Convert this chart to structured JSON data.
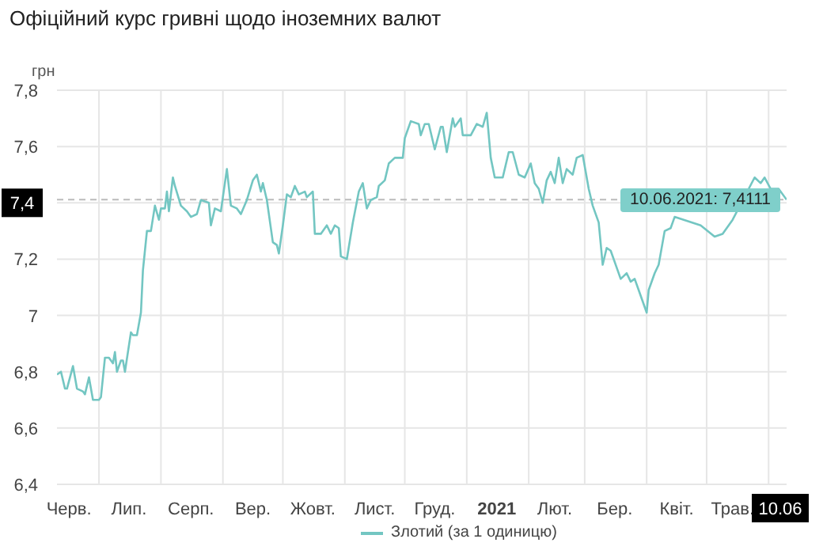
{
  "chart_data": {
    "type": "line",
    "title": "Офіційний курс гривні щодо іноземних валют",
    "ylabel": "грн",
    "x": [
      "2020-06-10",
      "2020-06-12",
      "2020-06-13",
      "2020-06-14",
      "2020-06-15",
      "2020-06-18",
      "2020-06-20",
      "2020-06-23",
      "2020-06-24",
      "2020-06-26",
      "2020-06-28",
      "2020-07-01",
      "2020-07-02",
      "2020-07-04",
      "2020-07-06",
      "2020-07-08",
      "2020-07-09",
      "2020-07-10",
      "2020-07-12",
      "2020-07-13",
      "2020-07-14",
      "2020-07-17",
      "2020-07-18",
      "2020-07-20",
      "2020-07-22",
      "2020-07-23",
      "2020-07-25",
      "2020-07-27",
      "2020-07-29",
      "2020-07-31",
      "2020-08-01",
      "2020-08-03",
      "2020-08-04",
      "2020-08-05",
      "2020-08-07",
      "2020-08-08",
      "2020-08-11",
      "2020-08-14",
      "2020-08-16",
      "2020-08-19",
      "2020-08-21",
      "2020-08-25",
      "2020-08-26",
      "2020-08-28",
      "2020-08-31",
      "2020-09-01",
      "2020-09-03",
      "2020-09-05",
      "2020-09-08",
      "2020-09-10",
      "2020-09-13",
      "2020-09-16",
      "2020-09-18",
      "2020-09-20",
      "2020-09-21",
      "2020-09-23",
      "2020-09-26",
      "2020-09-28",
      "2020-09-29",
      "2020-10-01",
      "2020-10-03",
      "2020-10-05",
      "2020-10-07",
      "2020-10-09",
      "2020-10-12",
      "2020-10-13",
      "2020-10-16",
      "2020-10-17",
      "2020-10-20",
      "2020-10-23",
      "2020-10-25",
      "2020-10-27",
      "2020-10-29",
      "2020-10-30",
      "2020-11-02",
      "2020-11-05",
      "2020-11-08",
      "2020-11-10",
      "2020-11-12",
      "2020-11-14",
      "2020-11-17",
      "2020-11-18",
      "2020-11-21",
      "2020-11-23",
      "2020-11-26",
      "2020-11-30",
      "2020-12-01",
      "2020-12-04",
      "2020-12-08",
      "2020-12-09",
      "2020-12-11",
      "2020-12-13",
      "2020-12-16",
      "2020-12-19",
      "2020-12-20",
      "2020-12-22",
      "2020-12-25",
      "2020-12-26",
      "2020-12-29",
      "2020-12-30",
      "2021-01-03",
      "2021-01-06",
      "2021-01-09",
      "2021-01-11",
      "2021-01-13",
      "2021-01-15",
      "2021-01-19",
      "2021-01-22",
      "2021-01-24",
      "2021-01-27",
      "2021-01-30",
      "2021-02-02",
      "2021-02-04",
      "2021-02-06",
      "2021-02-08",
      "2021-02-10",
      "2021-02-12",
      "2021-02-14",
      "2021-02-16",
      "2021-02-18",
      "2021-02-20",
      "2021-02-23",
      "2021-02-25",
      "2021-02-28",
      "2021-03-03",
      "2021-03-05",
      "2021-03-08",
      "2021-03-10",
      "2021-03-12",
      "2021-03-14",
      "2021-03-17",
      "2021-03-19",
      "2021-03-22",
      "2021-03-24",
      "2021-03-26",
      "2021-03-28",
      "2021-04-01",
      "2021-04-02",
      "2021-04-05",
      "2021-04-07",
      "2021-04-10",
      "2021-04-13",
      "2021-04-15",
      "2021-04-19",
      "2021-04-28",
      "2021-05-05",
      "2021-05-09",
      "2021-05-14",
      "2021-05-25",
      "2021-05-28",
      "2021-05-30",
      "2021-06-02",
      "2021-06-06",
      "2021-06-10"
    ],
    "series": [
      {
        "name": "Злотий (за 1 одиницю)",
        "color": "#73c6c2",
        "values": [
          6.79,
          6.8,
          6.77,
          6.74,
          6.74,
          6.82,
          6.74,
          6.73,
          6.72,
          6.78,
          6.7,
          6.7,
          6.71,
          6.85,
          6.85,
          6.83,
          6.87,
          6.8,
          6.84,
          6.84,
          6.8,
          6.94,
          6.93,
          6.93,
          7.01,
          7.16,
          7.3,
          7.3,
          7.39,
          7.34,
          7.38,
          7.38,
          7.44,
          7.37,
          7.49,
          7.46,
          7.39,
          7.37,
          7.35,
          7.36,
          7.41,
          7.4,
          7.32,
          7.38,
          7.37,
          7.42,
          7.52,
          7.39,
          7.38,
          7.36,
          7.41,
          7.48,
          7.5,
          7.44,
          7.47,
          7.41,
          7.26,
          7.25,
          7.22,
          7.32,
          7.43,
          7.42,
          7.46,
          7.43,
          7.44,
          7.42,
          7.44,
          7.29,
          7.29,
          7.32,
          7.29,
          7.32,
          7.31,
          7.21,
          7.2,
          7.33,
          7.44,
          7.47,
          7.38,
          7.41,
          7.42,
          7.46,
          7.48,
          7.54,
          7.56,
          7.56,
          7.63,
          7.69,
          7.68,
          7.64,
          7.68,
          7.68,
          7.59,
          7.67,
          7.67,
          7.58,
          7.7,
          7.67,
          7.7,
          7.64,
          7.64,
          7.68,
          7.67,
          7.72,
          7.56,
          7.49,
          7.49,
          7.58,
          7.58,
          7.5,
          7.49,
          7.54,
          7.47,
          7.45,
          7.4,
          7.48,
          7.51,
          7.47,
          7.56,
          7.47,
          7.52,
          7.5,
          7.56,
          7.57,
          7.45,
          7.39,
          7.33,
          7.18,
          7.24,
          7.23,
          7.17,
          7.13,
          7.15,
          7.12,
          7.13,
          7.09,
          7.01,
          7.09,
          7.15,
          7.18,
          7.3,
          7.31,
          7.35,
          null,
          7.32,
          7.28,
          7.29,
          7.34,
          7.49,
          7.47,
          7.49,
          7.45,
          7.45,
          7.4111
        ]
      }
    ],
    "xlim": [
      "2020-06-10",
      "2021-06-10"
    ],
    "xticks": [
      {
        "value": "2020-06-16",
        "label": "Черв."
      },
      {
        "value": "2020-07-01",
        "label": null
      },
      {
        "value": "2020-07-16",
        "label": "Лип."
      },
      {
        "value": "2020-08-01",
        "label": null
      },
      {
        "value": "2020-08-16",
        "label": "Серп."
      },
      {
        "value": "2020-09-01",
        "label": null
      },
      {
        "value": "2020-09-16",
        "label": "Вер."
      },
      {
        "value": "2020-10-01",
        "label": null
      },
      {
        "value": "2020-10-16",
        "label": "Жовт."
      },
      {
        "value": "2020-11-01",
        "label": null
      },
      {
        "value": "2020-11-16",
        "label": "Лист."
      },
      {
        "value": "2020-12-01",
        "label": null
      },
      {
        "value": "2020-12-16",
        "label": "Груд."
      },
      {
        "value": "2021-01-01",
        "label": null
      },
      {
        "value": "2021-01-16",
        "label": "2021"
      },
      {
        "value": "2021-02-01",
        "label": null
      },
      {
        "value": "2021-02-14",
        "label": "Лют."
      },
      {
        "value": "2021-03-01",
        "label": null
      },
      {
        "value": "2021-03-16",
        "label": "Бер."
      },
      {
        "value": "2021-04-01",
        "label": null
      },
      {
        "value": "2021-04-16",
        "label": "Квіт."
      },
      {
        "value": "2021-05-01",
        "label": null
      },
      {
        "value": "2021-05-14",
        "label": "Трав."
      },
      {
        "value": "2021-06-01",
        "label": null
      },
      {
        "value": "2021-06-10",
        "label": "10.06"
      }
    ],
    "ylim": [
      6.4,
      7.8
    ],
    "yticks": [
      {
        "value": 6.4,
        "label": "6,4"
      },
      {
        "value": 6.6,
        "label": "6,6"
      },
      {
        "value": 6.8,
        "label": "6,8"
      },
      7,
      {
        "value": 7.2,
        "label": "7,2"
      },
      {
        "value": 7.4,
        "label": "7,4"
      },
      {
        "value": 7.6,
        "label": "7,6"
      },
      {
        "value": 7.8,
        "label": "7,8"
      }
    ],
    "ref_lines": [
      {
        "axis": "y",
        "value": 7.4111,
        "line_style": "dashed",
        "color": "#bbbbbb"
      }
    ],
    "annotations": [
      {
        "text": "10.06.2021: 7,4111",
        "x": "2021-06-10",
        "y": 7.4111
      }
    ],
    "grid": true,
    "legend": "bottom",
    "marker": "none",
    "line_style": "solid"
  }
}
